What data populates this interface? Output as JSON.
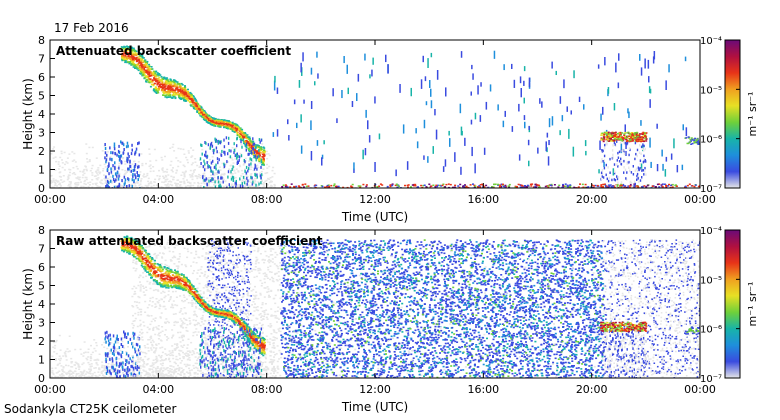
{
  "date": "17 Feb 2016",
  "instrument": "Sodankyla CT25K ceilometer",
  "colors": {
    "scale": [
      "#e6e6e6",
      "#3a4be0",
      "#1e8fdc",
      "#18b4a8",
      "#6fd03a",
      "#e8e024",
      "#f0a020",
      "#e83418",
      "#b01040",
      "#6a0a78"
    ],
    "background": "#ffffff",
    "axis": "#000000"
  },
  "chart_data": [
    {
      "type": "heatmap",
      "title": "Attenuated backscatter coefficient",
      "xlabel": "Time (UTC)",
      "ylabel": "Height (km)",
      "xlim": [
        0,
        24
      ],
      "ylim": [
        0,
        8
      ],
      "xticks": [
        "00:00",
        "04:00",
        "08:00",
        "12:00",
        "16:00",
        "20:00",
        "00:00"
      ],
      "yticks": [
        "0",
        "1",
        "2",
        "3",
        "4",
        "5",
        "6",
        "7",
        "8"
      ],
      "colorbar": {
        "scale": "log",
        "min_label": "10⁻⁷",
        "max_label": "10⁻⁴",
        "ticks": [
          "10⁻⁴",
          "10⁻⁵",
          "10⁻⁶",
          "10⁻⁷"
        ],
        "unit": "m⁻¹ sr⁻¹"
      },
      "features": [
        {
          "name": "descending cloud layer",
          "t_start": 2.6,
          "t_end": 7.9,
          "h_start": 7.3,
          "h_end": 1.9
        },
        {
          "name": "elevated layer",
          "t_start": 20.3,
          "t_end": 22.0,
          "h": 2.8
        },
        {
          "name": "near-surface layer",
          "t_start": 8.5,
          "t_end": 24.0,
          "h": 0.1
        }
      ],
      "grid": false
    },
    {
      "type": "heatmap",
      "title": "Raw attenuated backscatter coefficient",
      "xlabel": "Time (UTC)",
      "ylabel": "Height (km)",
      "xlim": [
        0,
        24
      ],
      "ylim": [
        0,
        8
      ],
      "xticks": [
        "00:00",
        "04:00",
        "08:00",
        "12:00",
        "16:00",
        "20:00",
        "00:00"
      ],
      "yticks": [
        "0",
        "1",
        "2",
        "3",
        "4",
        "5",
        "6",
        "7",
        "8"
      ],
      "colorbar": {
        "scale": "log",
        "min_label": "10⁻⁷",
        "max_label": "10⁻⁴",
        "ticks": [
          "10⁻⁴",
          "10⁻⁵",
          "10⁻⁶",
          "10⁻⁷"
        ],
        "unit": "m⁻¹ sr⁻¹"
      },
      "features": [
        {
          "name": "descending cloud layer",
          "t_start": 2.6,
          "t_end": 7.9,
          "h_start": 7.3,
          "h_end": 1.9
        },
        {
          "name": "noise region",
          "t_start": 8.5,
          "t_end": 20.4,
          "h_top": 7.5
        },
        {
          "name": "elevated layer",
          "t_start": 20.3,
          "t_end": 22.0,
          "h": 2.8
        }
      ],
      "grid": false
    }
  ]
}
